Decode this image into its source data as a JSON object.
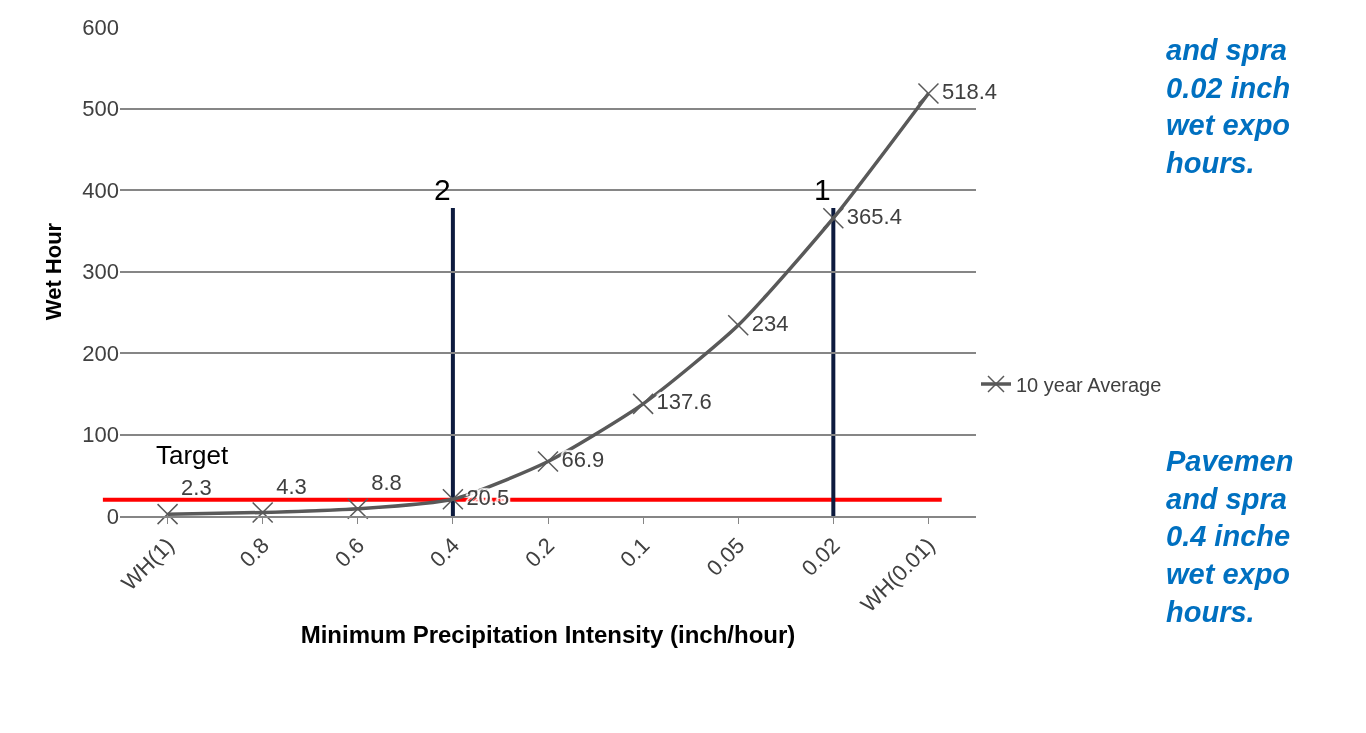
{
  "chart_data": {
    "type": "line",
    "xlabel": "Minimum Precipitation Intensity (inch/hour)",
    "ylabel": "Wet Hour",
    "categories": [
      "WH(1)",
      "0.8",
      "0.6",
      "0.4",
      "0.2",
      "0.1",
      "0.05",
      "0.02",
      "WH(0.01)"
    ],
    "series": [
      {
        "name": "10 year Average",
        "color": "#595959",
        "values": [
          2.3,
          4.3,
          8.8,
          20.5,
          66.9,
          137.6,
          234,
          365.4,
          518.4
        ]
      }
    ],
    "ylim": [
      0,
      600
    ],
    "yticks": [
      0,
      100,
      200,
      300,
      400,
      500,
      600
    ],
    "grid": "y",
    "legend": "right",
    "marker": "cross",
    "line_style": "solid",
    "data_labels": true,
    "ref_lines": [
      {
        "axis": "y",
        "value": 20,
        "label": "Target",
        "color": "#ff0000"
      },
      {
        "axis": "x",
        "value": "0.4",
        "label": "2",
        "color": "#0d1b3e"
      },
      {
        "axis": "x",
        "value": "0.02",
        "label": "1",
        "color": "#0d1b3e"
      }
    ],
    "annotations": [
      "and spra\n0.02 inch\nwet expo\nhours.",
      "Pavemen\nand spra\n0.4 inche\nwet expo\nhours."
    ]
  }
}
